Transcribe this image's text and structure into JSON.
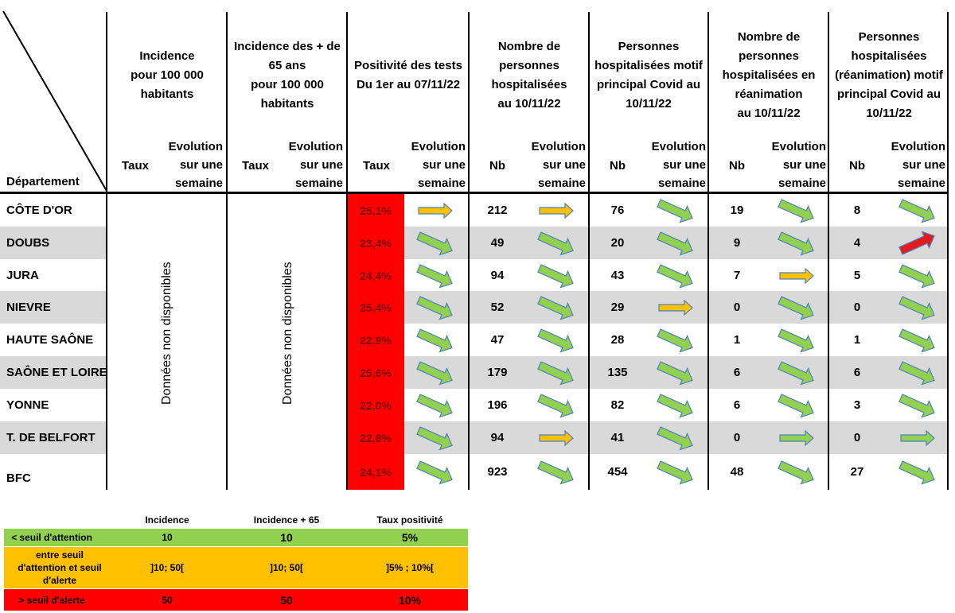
{
  "header": {
    "department_label": "Département",
    "groups": [
      {
        "lines": [
          "Incidence",
          "pour 100 000",
          "habitants"
        ]
      },
      {
        "lines": [
          "Incidence des + de",
          "65 ans",
          "pour 100 000",
          "habitants"
        ]
      },
      {
        "lines": [
          "Positivité des tests",
          "Du 1er au 07/11/22"
        ]
      },
      {
        "lines": [
          "Nombre de",
          "personnes",
          "hospitalisées",
          "au 10/11/22"
        ]
      },
      {
        "lines": [
          "Personnes",
          "hospitalisées motif",
          "principal Covid au",
          "10/11/22"
        ]
      },
      {
        "lines": [
          "Nombre de",
          "personnes",
          "hospitalisées en",
          "réanimation",
          "au 10/11/22"
        ]
      },
      {
        "lines": [
          "Personnes",
          "hospitalisées",
          "(réanimation) motif",
          "principal Covid au",
          "10/11/22"
        ]
      }
    ],
    "sub": {
      "taux": "Taux",
      "nb": "Nb",
      "evolution": [
        "Evolution",
        "sur une",
        "semaine"
      ]
    }
  },
  "unavailable_text": "Données non disponibles",
  "rows": [
    {
      "dept": "CÔTE D'OR",
      "pos": "25,1%",
      "pos_arrow": "right-orange",
      "hosp": "212",
      "hosp_arrow": "right-orange",
      "covid": "76",
      "covid_arrow": "down-green",
      "rea": "19",
      "rea_arrow": "down-green",
      "rea_covid": "8",
      "rea_covid_arrow": "down-green"
    },
    {
      "dept": "DOUBS",
      "pos": "23,4%",
      "pos_arrow": "down-green",
      "hosp": "49",
      "hosp_arrow": "down-green",
      "covid": "20",
      "covid_arrow": "down-green",
      "rea": "9",
      "rea_arrow": "down-green",
      "rea_covid": "4",
      "rea_covid_arrow": "up-red"
    },
    {
      "dept": "JURA",
      "pos": "24,4%",
      "pos_arrow": "down-green",
      "hosp": "94",
      "hosp_arrow": "down-green",
      "covid": "43",
      "covid_arrow": "down-green",
      "rea": "7",
      "rea_arrow": "right-orange",
      "rea_covid": "5",
      "rea_covid_arrow": "down-green"
    },
    {
      "dept": "NIEVRE",
      "pos": "25,4%",
      "pos_arrow": "down-green",
      "hosp": "52",
      "hosp_arrow": "down-green",
      "covid": "29",
      "covid_arrow": "right-orange",
      "rea": "0",
      "rea_arrow": "down-green",
      "rea_covid": "0",
      "rea_covid_arrow": "down-green"
    },
    {
      "dept": "HAUTE SAÔNE",
      "pos": "22,9%",
      "pos_arrow": "down-green",
      "hosp": "47",
      "hosp_arrow": "down-green",
      "covid": "28",
      "covid_arrow": "down-green",
      "rea": "1",
      "rea_arrow": "down-green",
      "rea_covid": "1",
      "rea_covid_arrow": "down-green"
    },
    {
      "dept": "SAÔNE ET LOIRE",
      "pos": "25,6%",
      "pos_arrow": "down-green",
      "hosp": "179",
      "hosp_arrow": "down-green",
      "covid": "135",
      "covid_arrow": "down-green",
      "rea": "6",
      "rea_arrow": "down-green",
      "rea_covid": "6",
      "rea_covid_arrow": "down-green"
    },
    {
      "dept": "YONNE",
      "pos": "22,0%",
      "pos_arrow": "down-green",
      "hosp": "196",
      "hosp_arrow": "down-green",
      "covid": "82",
      "covid_arrow": "down-green",
      "rea": "6",
      "rea_arrow": "down-green",
      "rea_covid": "3",
      "rea_covid_arrow": "down-green"
    },
    {
      "dept": "T. DE BELFORT",
      "pos": "22,8%",
      "pos_arrow": "down-green",
      "hosp": "94",
      "hosp_arrow": "right-orange",
      "covid": "41",
      "covid_arrow": "down-green",
      "rea": "0",
      "rea_arrow": "right-green",
      "rea_covid": "0",
      "rea_covid_arrow": "right-green"
    },
    {
      "dept": "BFC",
      "pos": "24,1%",
      "pos_arrow": "down-green",
      "hosp": "923",
      "hosp_arrow": "down-green",
      "covid": "454",
      "covid_arrow": "down-green",
      "rea": "48",
      "rea_arrow": "down-green",
      "rea_covid": "27",
      "rea_covid_arrow": "down-green"
    }
  ],
  "legend": {
    "headers": [
      "Incidence",
      "Incidence + 65",
      "Taux positivité"
    ],
    "rows": [
      {
        "label": "< seuil d'attention",
        "values": [
          "10",
          "10",
          "5%"
        ],
        "color": "#92d050"
      },
      {
        "label": "entre seuil d'attention et seuil d'alerte",
        "values": [
          "]10; 50[",
          "]10; 50[",
          "]5% ; 10%["
        ],
        "color": "#ffc000"
      },
      {
        "label": "> seuil d'alerte",
        "values": [
          "50",
          "50",
          "10%"
        ],
        "color": "#ff0000"
      }
    ]
  },
  "colors": {
    "green": "#92d050",
    "orange": "#ffc000",
    "red": "#e31b1b",
    "stripe": "#d9d9d9",
    "positivity_bg": "#ff0000"
  }
}
